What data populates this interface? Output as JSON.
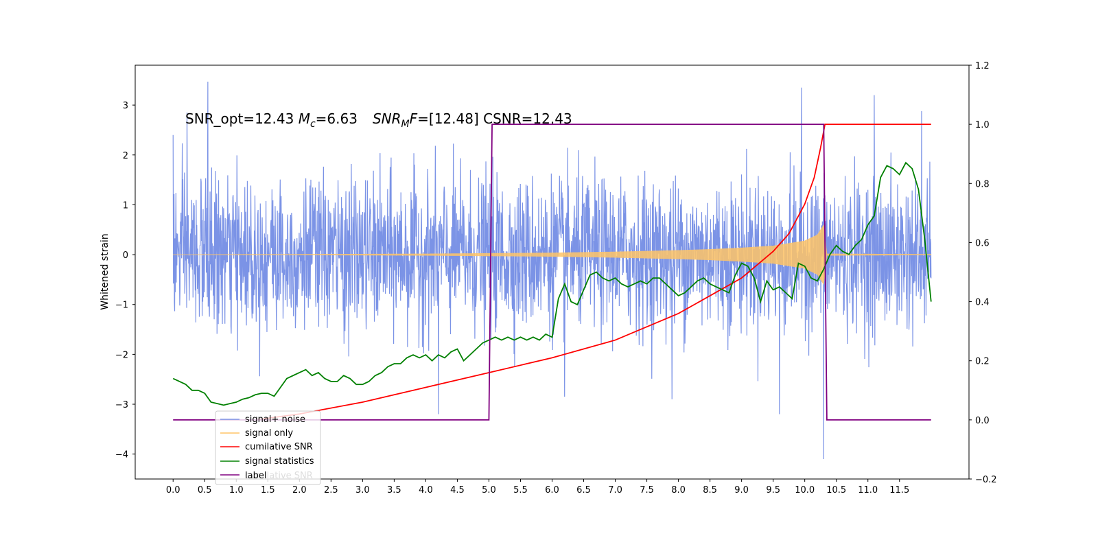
{
  "chart_data": {
    "type": "line",
    "annotation": {
      "part1": "SNR_opt=12.43 ",
      "mc_symbol": "M",
      "mc_sub": "c",
      "mc_value": "=6.63",
      "snr_symbol": "SNR",
      "snr_sub": "M",
      "snr_f": "F",
      "snr_value": "=[12.48] CSNR=12.43"
    },
    "ylabel": "Whitened strain",
    "xlim": [
      -0.6,
      12.6
    ],
    "ylim": [
      -4.5,
      3.8
    ],
    "y2lim": [
      -0.2,
      1.2
    ],
    "x_ticks": [
      "0.0",
      "0.5",
      "1.0",
      "1.5",
      "2.0",
      "2.5",
      "3.0",
      "3.5",
      "4.0",
      "4.5",
      "5.0",
      "5.5",
      "6.0",
      "6.5",
      "7.0",
      "7.5",
      "8.0",
      "8.5",
      "9.0",
      "9.5",
      "10.0",
      "10.5",
      "11.0",
      "11.5"
    ],
    "y_ticks": [
      "3",
      "2",
      "1",
      "0",
      "−1",
      "−2",
      "−3",
      "−4"
    ],
    "y_tick_values": [
      3,
      2,
      1,
      0,
      -1,
      -2,
      -3,
      -4
    ],
    "y2_ticks": [
      "1.2",
      "1.0",
      "0.8",
      "0.6",
      "0.4",
      "0.2",
      "0.0",
      "−0.2"
    ],
    "y2_tick_values": [
      1.2,
      1.0,
      0.8,
      0.6,
      0.4,
      0.2,
      0.0,
      -0.2
    ],
    "legend": {
      "position": "lower-left",
      "entries": [
        {
          "label": "signal+ noise",
          "color": "#7b93e6"
        },
        {
          "label": "signal only",
          "color": "#ffc466"
        },
        {
          "label": "cumilative SNR",
          "color": "#ff0000"
        },
        {
          "label": "signal statistics",
          "color": "#008000"
        },
        {
          "label": "label",
          "color": "#800080"
        }
      ],
      "ghost_text": "cumilative SNR"
    },
    "series": [
      {
        "name": "signal+ noise",
        "axis": "left",
        "color": "#7b93e6",
        "x_range": [
          0.0,
          12.0
        ],
        "envelope_typical": 1.5,
        "min": -4.1,
        "max": 3.47,
        "peaks": [
          [
            0.55,
            3.47
          ],
          [
            0.22,
            2.85
          ],
          [
            0.0,
            2.4
          ],
          [
            9.95,
            3.35
          ],
          [
            11.1,
            3.2
          ],
          [
            11.85,
            2.88
          ],
          [
            10.3,
            -4.1
          ],
          [
            9.6,
            -3.2
          ],
          [
            4.2,
            -3.2
          ],
          [
            7.9,
            -2.9
          ],
          [
            6.2,
            -2.85
          ]
        ]
      },
      {
        "name": "signal only",
        "axis": "left",
        "color": "#ffc466",
        "x": [
          0.0,
          1.0,
          2.0,
          3.0,
          4.0,
          5.0,
          6.0,
          7.0,
          8.0,
          8.5,
          9.0,
          9.5,
          10.0,
          10.2,
          10.3,
          10.35,
          12.0
        ],
        "amplitude": [
          0.005,
          0.008,
          0.01,
          0.015,
          0.02,
          0.03,
          0.04,
          0.06,
          0.09,
          0.11,
          0.14,
          0.18,
          0.28,
          0.4,
          0.6,
          0.02,
          0.01
        ]
      },
      {
        "name": "cumilative SNR",
        "axis": "right",
        "color": "#ff0000",
        "x": [
          1.3,
          2.0,
          3.0,
          4.0,
          5.0,
          6.0,
          7.0,
          8.0,
          8.5,
          9.0,
          9.5,
          9.75,
          10.0,
          10.15,
          10.25,
          10.32,
          10.35,
          12.0
        ],
        "y": [
          0.0,
          0.02,
          0.06,
          0.11,
          0.16,
          0.21,
          0.27,
          0.36,
          0.42,
          0.48,
          0.57,
          0.63,
          0.73,
          0.82,
          0.92,
          1.0,
          1.0,
          1.0
        ]
      },
      {
        "name": "signal statistics",
        "axis": "right",
        "color": "#008000",
        "x": [
          0.0,
          0.1,
          0.2,
          0.3,
          0.4,
          0.5,
          0.6,
          0.7,
          0.8,
          0.9,
          1.0,
          1.1,
          1.2,
          1.3,
          1.4,
          1.5,
          1.6,
          1.7,
          1.8,
          1.9,
          2.0,
          2.1,
          2.2,
          2.3,
          2.4,
          2.5,
          2.6,
          2.7,
          2.8,
          2.9,
          3.0,
          3.1,
          3.2,
          3.3,
          3.4,
          3.5,
          3.6,
          3.7,
          3.8,
          3.9,
          4.0,
          4.1,
          4.2,
          4.3,
          4.4,
          4.5,
          4.6,
          4.7,
          4.8,
          4.9,
          5.0,
          5.1,
          5.2,
          5.3,
          5.4,
          5.5,
          5.6,
          5.7,
          5.8,
          5.9,
          6.0,
          6.1,
          6.2,
          6.3,
          6.4,
          6.5,
          6.6,
          6.7,
          6.8,
          6.9,
          7.0,
          7.1,
          7.2,
          7.3,
          7.4,
          7.5,
          7.6,
          7.7,
          7.8,
          7.9,
          8.0,
          8.1,
          8.2,
          8.3,
          8.4,
          8.5,
          8.6,
          8.7,
          8.8,
          8.9,
          9.0,
          9.1,
          9.2,
          9.3,
          9.4,
          9.5,
          9.6,
          9.7,
          9.8,
          9.9,
          10.0,
          10.1,
          10.2,
          10.3,
          10.4,
          10.5,
          10.6,
          10.7,
          10.8,
          10.9,
          11.0,
          11.1,
          11.2,
          11.3,
          11.4,
          11.5,
          11.6,
          11.7,
          11.8,
          11.9,
          12.0
        ],
        "y": [
          0.14,
          0.13,
          0.12,
          0.1,
          0.1,
          0.09,
          0.06,
          0.055,
          0.05,
          0.055,
          0.06,
          0.07,
          0.075,
          0.085,
          0.09,
          0.09,
          0.08,
          0.11,
          0.14,
          0.15,
          0.16,
          0.17,
          0.15,
          0.16,
          0.14,
          0.13,
          0.13,
          0.15,
          0.14,
          0.12,
          0.12,
          0.13,
          0.15,
          0.16,
          0.18,
          0.19,
          0.19,
          0.21,
          0.22,
          0.21,
          0.22,
          0.2,
          0.22,
          0.21,
          0.23,
          0.24,
          0.2,
          0.22,
          0.24,
          0.26,
          0.27,
          0.28,
          0.27,
          0.28,
          0.27,
          0.28,
          0.27,
          0.28,
          0.27,
          0.29,
          0.28,
          0.41,
          0.46,
          0.4,
          0.39,
          0.44,
          0.49,
          0.5,
          0.48,
          0.47,
          0.48,
          0.46,
          0.45,
          0.46,
          0.47,
          0.46,
          0.48,
          0.48,
          0.46,
          0.44,
          0.42,
          0.43,
          0.45,
          0.47,
          0.48,
          0.46,
          0.45,
          0.44,
          0.43,
          0.49,
          0.53,
          0.52,
          0.48,
          0.4,
          0.47,
          0.44,
          0.45,
          0.43,
          0.41,
          0.53,
          0.52,
          0.48,
          0.47,
          0.51,
          0.56,
          0.59,
          0.57,
          0.56,
          0.59,
          0.61,
          0.66,
          0.69,
          0.82,
          0.86,
          0.85,
          0.83,
          0.87,
          0.85,
          0.78,
          0.61,
          0.4
        ]
      },
      {
        "name": "label",
        "axis": "right",
        "color": "#800080",
        "x": [
          0.0,
          5.0,
          5.05,
          10.3,
          10.35,
          12.0
        ],
        "y": [
          0.0,
          0.0,
          1.0,
          1.0,
          0.0,
          0.0
        ]
      }
    ]
  }
}
